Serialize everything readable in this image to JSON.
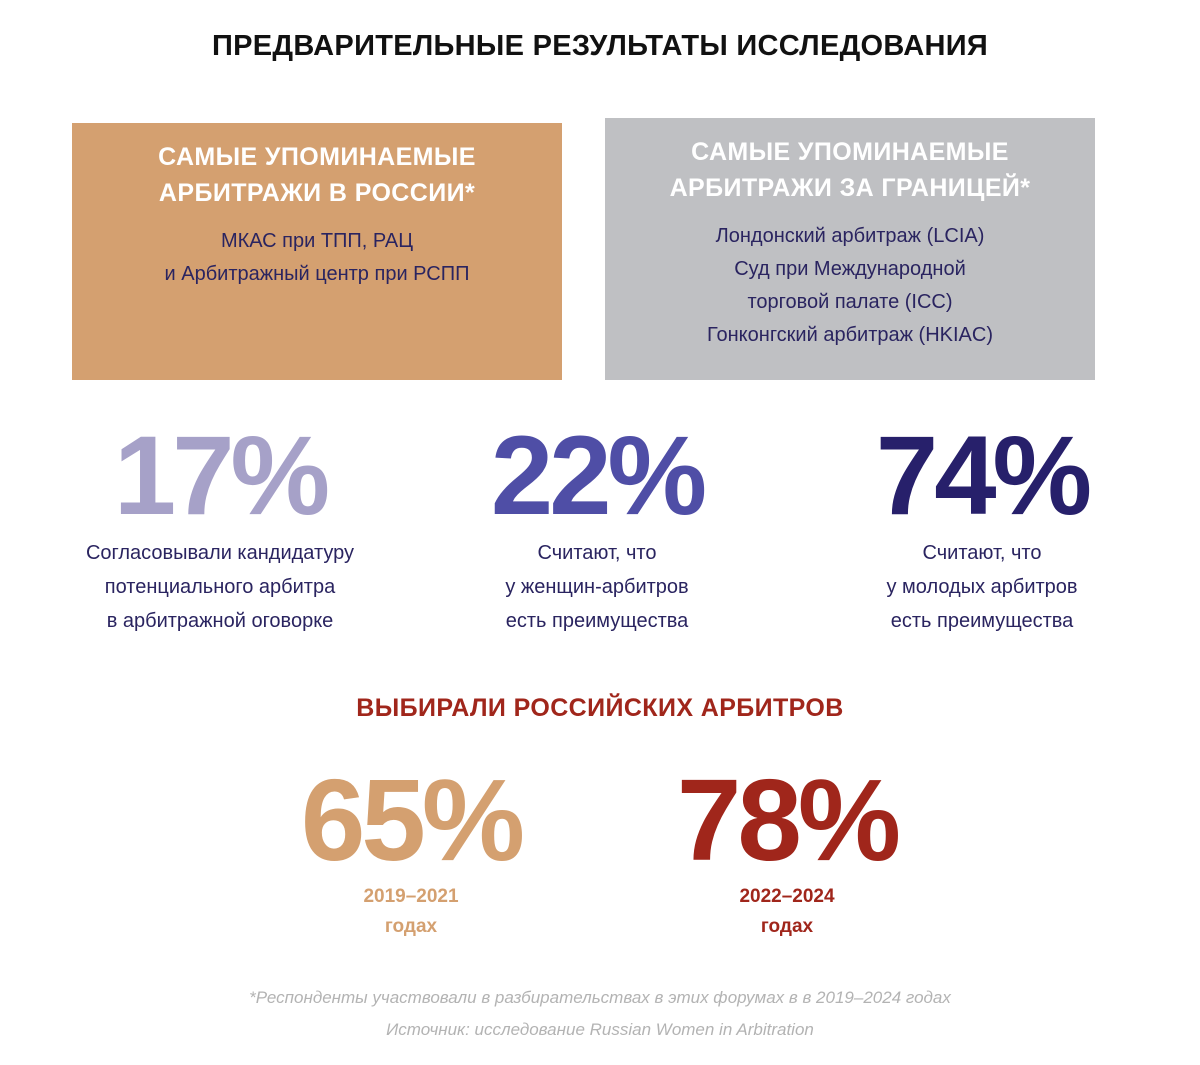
{
  "title": "ПРЕДВАРИТЕЛЬНЫЕ РЕЗУЛЬТАТЫ ИССЛЕДОВАНИЯ",
  "colors": {
    "russia_card": "#d4a070",
    "abroad_card": "#bfc0c3",
    "text_dark_blue": "#2a2460",
    "stat_17": "#a6a1c8",
    "stat_22": "#4f4ea6",
    "stat_74": "#27206b",
    "accent_red": "#a0261b",
    "accent_gold": "#d4a070",
    "footnote_gray": "#b3b3b3"
  },
  "cards": {
    "russia": {
      "heading_lines": [
        "САМЫЕ УПОМИНАЕМЫЕ",
        "АРБИТРАЖИ В РОССИИ*"
      ],
      "items": [
        "МКАС при ТПП, РАЦ",
        "и Арбитражный центр при РСПП"
      ]
    },
    "abroad": {
      "heading_lines": [
        "САМЫЕ УПОМИНАЕМЫЕ",
        "АРБИТРАЖИ ЗА ГРАНИЦЕЙ*"
      ],
      "items": [
        "Лондонский арбитраж (LCIA)",
        "Суд при Международной",
        "торговой палате (ICC)",
        "Гонконгский арбитраж (HKIAC)"
      ]
    }
  },
  "stats": [
    {
      "value": "17%",
      "description": [
        "Согласовывали кандидатуру",
        "потенциального арбитра",
        "в арбитражной оговорке"
      ]
    },
    {
      "value": "22%",
      "description": [
        "Считают, что",
        "у женщин-арбитров",
        "есть преимущества"
      ]
    },
    {
      "value": "74%",
      "description": [
        "Считают, что",
        "у молодых арбитров",
        "есть преимущества"
      ]
    }
  ],
  "russian_arbitrators": {
    "title": "ВЫБИРАЛИ РОССИЙСКИХ АРБИТРОВ",
    "periods": [
      {
        "value": "65%",
        "years": "2019–2021",
        "unit": "годах"
      },
      {
        "value": "78%",
        "years": "2022–2024",
        "unit": "годах"
      }
    ]
  },
  "footnotes": {
    "note": "*Респонденты участвовали в разбирательствах в этих форумах в в 2019–2024 годах",
    "source": "Источник: исследование Russian Women in Arbitration"
  }
}
